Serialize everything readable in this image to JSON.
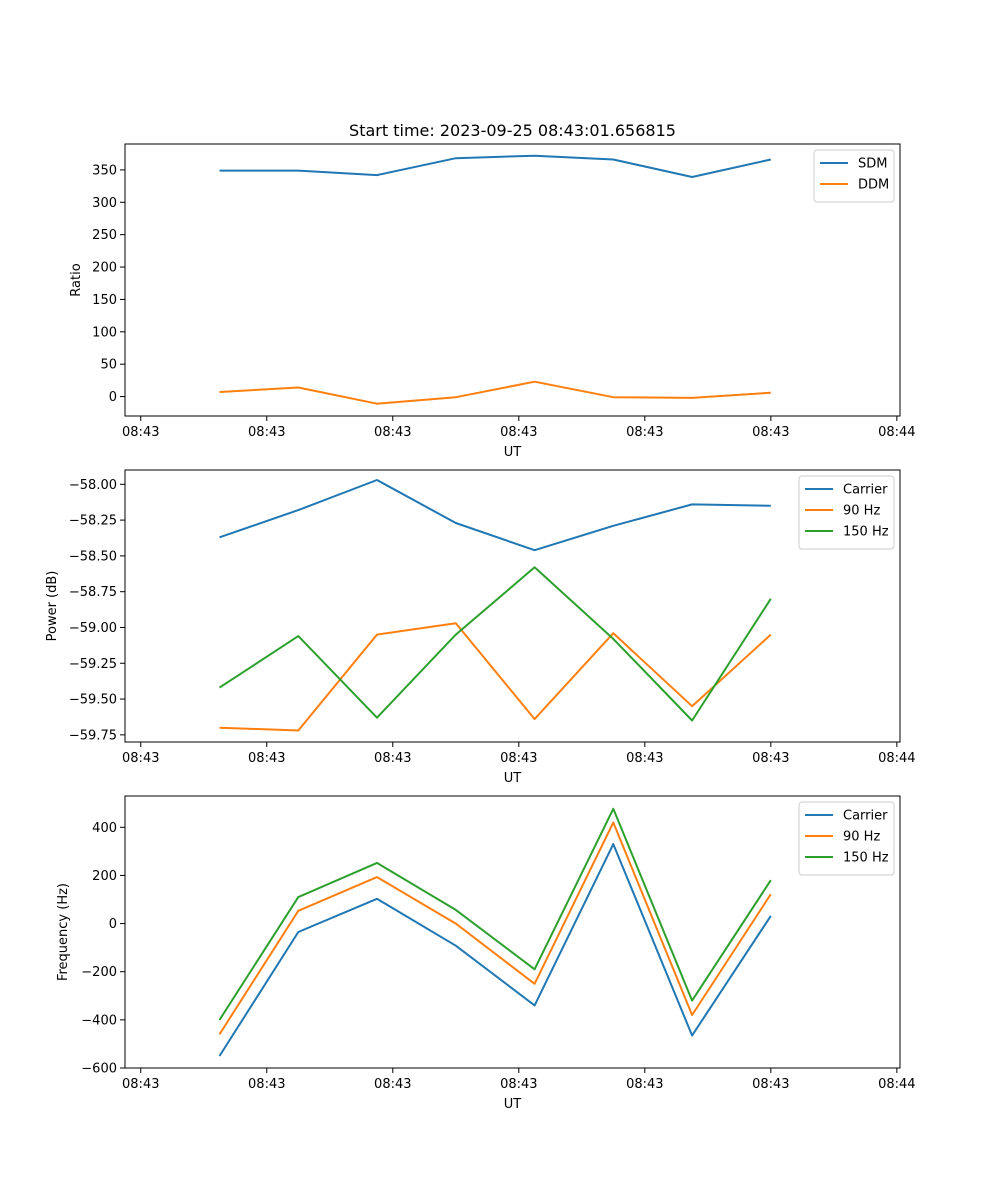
{
  "chart_data": [
    {
      "type": "line",
      "title": "Start time: 2023-09-25 08:43:01.656815",
      "xlabel": "UT",
      "ylabel": "Ratio",
      "x": [
        0.5,
        1,
        1.5,
        2,
        2.5,
        3,
        3.5,
        4
      ],
      "x_ticks": [
        0,
        0.8,
        1.6,
        2.4,
        3.2,
        4.0,
        4.8
      ],
      "x_tick_labels": [
        "08:43",
        "08:43",
        "08:43",
        "08:43",
        "08:43",
        "08:43",
        "08:44"
      ],
      "xlim": [
        -0.1,
        4.82
      ],
      "ylim": [
        -30,
        390
      ],
      "y_ticks": [
        0,
        50,
        100,
        150,
        200,
        250,
        300,
        350
      ],
      "y_tick_labels": [
        "0",
        "50",
        "100",
        "150",
        "200",
        "250",
        "300",
        "350"
      ],
      "legend_position": "top-right",
      "series": [
        {
          "name": "SDM",
          "color": "#1f77b4",
          "values": [
            349,
            349,
            342,
            368,
            372,
            366,
            339,
            366
          ]
        },
        {
          "name": "DDM",
          "color": "#ff7f0e",
          "values": [
            7,
            14,
            -11,
            -1,
            23,
            -1,
            -2,
            6
          ]
        }
      ]
    },
    {
      "type": "line",
      "title": "",
      "xlabel": "UT",
      "ylabel": "Power (dB)",
      "x": [
        0.5,
        1,
        1.5,
        2,
        2.5,
        3,
        3.5,
        4
      ],
      "x_ticks": [
        0,
        0.8,
        1.6,
        2.4,
        3.2,
        4.0,
        4.8
      ],
      "x_tick_labels": [
        "08:43",
        "08:43",
        "08:43",
        "08:43",
        "08:43",
        "08:43",
        "08:44"
      ],
      "xlim": [
        -0.1,
        4.82
      ],
      "ylim": [
        -59.8,
        -57.9
      ],
      "y_ticks": [
        -59.75,
        -59.5,
        -59.25,
        -59.0,
        -58.75,
        -58.5,
        -58.25,
        -58.0
      ],
      "y_tick_labels": [
        "−59.75",
        "−59.50",
        "−59.25",
        "−59.00",
        "−58.75",
        "−58.50",
        "−58.25",
        "−58.00"
      ],
      "legend_position": "top-right",
      "series": [
        {
          "name": "Carrier",
          "color": "#1f77b4",
          "values": [
            -58.37,
            -58.18,
            -57.97,
            -58.27,
            -58.46,
            -58.29,
            -58.14,
            -58.15
          ]
        },
        {
          "name": "90 Hz",
          "color": "#ff7f0e",
          "values": [
            -59.7,
            -59.72,
            -59.05,
            -58.97,
            -59.64,
            -59.04,
            -59.55,
            -59.05
          ]
        },
        {
          "name": "150 Hz",
          "color": "#2ca02c",
          "values": [
            -59.42,
            -59.06,
            -59.63,
            -59.05,
            -58.58,
            -59.08,
            -59.65,
            -58.8
          ]
        }
      ]
    },
    {
      "type": "line",
      "title": "",
      "xlabel": "UT",
      "ylabel": "Frequency (Hz)",
      "x": [
        0.5,
        1,
        1.5,
        2,
        2.5,
        3,
        3.5,
        4
      ],
      "x_ticks": [
        0,
        0.8,
        1.6,
        2.4,
        3.2,
        4.0,
        4.8
      ],
      "x_tick_labels": [
        "08:43",
        "08:43",
        "08:43",
        "08:43",
        "08:43",
        "08:43",
        "08:44"
      ],
      "xlim": [
        -0.1,
        4.82
      ],
      "ylim": [
        -600,
        530
      ],
      "y_ticks": [
        -600,
        -400,
        -200,
        0,
        200,
        400
      ],
      "y_tick_labels": [
        "−600",
        "−400",
        "−200",
        "0",
        "200",
        "400"
      ],
      "legend_position": "top-right",
      "series": [
        {
          "name": "Carrier",
          "color": "#1f77b4",
          "values": [
            -550,
            -35,
            103,
            -92,
            -340,
            330,
            -465,
            32
          ]
        },
        {
          "name": "90 Hz",
          "color": "#ff7f0e",
          "values": [
            -460,
            53,
            193,
            0,
            -250,
            420,
            -380,
            122
          ]
        },
        {
          "name": "150 Hz",
          "color": "#2ca02c",
          "values": [
            -400,
            110,
            252,
            57,
            -190,
            477,
            -320,
            180
          ]
        }
      ]
    }
  ]
}
